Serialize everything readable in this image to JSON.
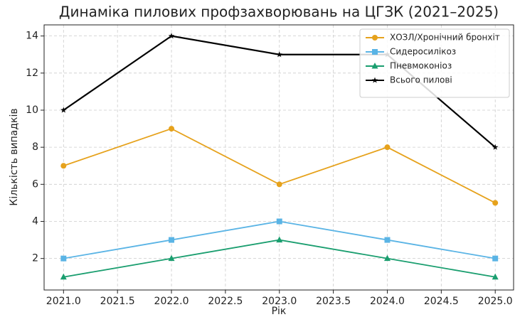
{
  "chart_data": {
    "type": "line",
    "title": "Динаміка пилових профзахворювань на ЦГЗК (2021–2025)",
    "x_label": "Рік",
    "y_label": "Кількість випадків",
    "x": [
      2021,
      2022,
      2023,
      2024,
      2025
    ],
    "series": [
      {
        "name": "ХОЗЛ/Хронічний бронхіт",
        "color": "#e6a21c",
        "marker": "circle",
        "values": [
          7,
          9,
          6,
          8,
          5
        ]
      },
      {
        "name": "Сидеросилікоз",
        "color": "#5ab4e5",
        "marker": "square",
        "values": [
          2,
          3,
          4,
          3,
          2
        ]
      },
      {
        "name": "Пневмоконіоз",
        "color": "#1a9e6f",
        "marker": "triangle",
        "values": [
          1,
          2,
          3,
          2,
          1
        ]
      },
      {
        "name": "Всього пилові",
        "color": "#000000",
        "marker": "star",
        "values": [
          10,
          14,
          13,
          13,
          8
        ]
      }
    ],
    "xlim": [
      2020.82,
      2025.17
    ],
    "xticks": [
      {
        "value": 2021,
        "label": "2021.0"
      },
      2021.5,
      {
        "value": 2022,
        "label": "2022.0"
      },
      2022.5,
      {
        "value": 2023,
        "label": "2023.0"
      },
      2023.5,
      {
        "value": 2024,
        "label": "2024.0"
      },
      2024.5,
      {
        "value": 2025,
        "label": "2025.0"
      }
    ],
    "ylim": [
      0.3,
      14.6
    ],
    "yticks": [
      2,
      4,
      6,
      8,
      10,
      12,
      14
    ],
    "grid": true,
    "legend": "upper right"
  }
}
